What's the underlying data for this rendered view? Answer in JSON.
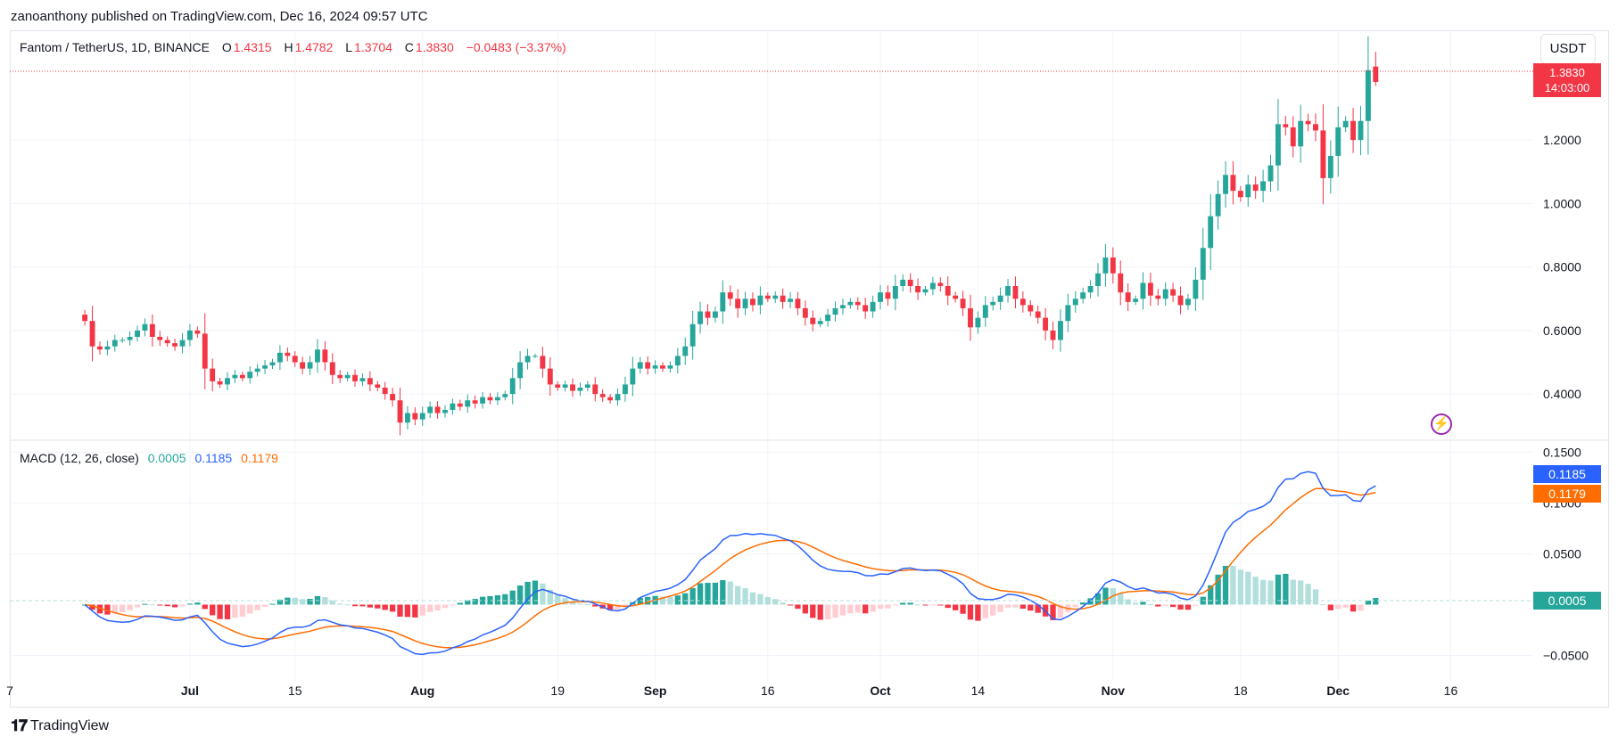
{
  "header": {
    "published": "zanoanthony published on TradingView.com, Dec 16, 2024 09:57 UTC"
  },
  "legend": {
    "symbol": "Fantom / TetherUS, 1D, BINANCE",
    "open_label": "O",
    "open": "1.4315",
    "high_label": "H",
    "high": "1.4782",
    "low_label": "L",
    "low": "1.3704",
    "close_label": "C",
    "close": "1.3830",
    "change": "−0.0483 (−3.37%)"
  },
  "currency_button": "USDT",
  "last_price_tag": {
    "price": "1.3830",
    "countdown": "14:03:00"
  },
  "macd_legend": {
    "label": "MACD (12, 26, close)",
    "hist": "0.0005",
    "macd": "0.1185",
    "signal": "0.1179"
  },
  "macd_tags": {
    "macd": "0.1185",
    "signal": "0.1179",
    "hist": "0.0005"
  },
  "colors": {
    "up": "#26a69a",
    "down": "#f23645",
    "macd_line": "#2962ff",
    "signal_line": "#ff6d00",
    "hist_up_light": "#b2dfdb",
    "hist_down_light": "#ffcdd2"
  },
  "icons": {
    "alert": "lightning-bolt-icon",
    "logo": "tradingview-logo-icon"
  },
  "footer": {
    "brand": "TradingView"
  },
  "chart_data": [
    {
      "type": "candlestick",
      "title": "Fantom / TetherUS, 1D, BINANCE",
      "y_ticks": [
        "0.4000",
        "0.6000",
        "0.8000",
        "1.0000",
        "1.2000"
      ],
      "y_tick_values": [
        0.4,
        0.6,
        0.8,
        1.0,
        1.2
      ],
      "ylim": [
        0.26,
        1.54
      ],
      "x_ticks": [
        "7",
        "Jul",
        "15",
        "Aug",
        "19",
        "Sep",
        "16",
        "Oct",
        "14",
        "Nov",
        "18",
        "Dec",
        "16"
      ],
      "x_tick_dates": [
        "2024-06-07",
        "2024-07-01",
        "2024-07-15",
        "2024-08-01",
        "2024-08-19",
        "2024-09-01",
        "2024-09-16",
        "2024-10-01",
        "2024-10-14",
        "2024-11-01",
        "2024-11-18",
        "2024-12-01",
        "2024-12-16"
      ],
      "date_range": [
        "2024-06-17",
        "2024-12-16"
      ],
      "closes": [
        0.63,
        0.55,
        0.54,
        0.55,
        0.57,
        0.57,
        0.58,
        0.6,
        0.62,
        0.58,
        0.57,
        0.56,
        0.55,
        0.57,
        0.6,
        0.59,
        0.48,
        0.44,
        0.43,
        0.45,
        0.46,
        0.45,
        0.47,
        0.48,
        0.49,
        0.5,
        0.53,
        0.52,
        0.5,
        0.48,
        0.5,
        0.54,
        0.5,
        0.46,
        0.45,
        0.46,
        0.44,
        0.45,
        0.43,
        0.42,
        0.4,
        0.38,
        0.31,
        0.34,
        0.32,
        0.34,
        0.36,
        0.34,
        0.35,
        0.37,
        0.36,
        0.38,
        0.37,
        0.39,
        0.38,
        0.39,
        0.4,
        0.45,
        0.5,
        0.52,
        0.52,
        0.48,
        0.43,
        0.42,
        0.43,
        0.41,
        0.42,
        0.43,
        0.4,
        0.39,
        0.38,
        0.4,
        0.43,
        0.48,
        0.5,
        0.48,
        0.49,
        0.48,
        0.49,
        0.52,
        0.55,
        0.62,
        0.66,
        0.64,
        0.66,
        0.72,
        0.7,
        0.67,
        0.7,
        0.68,
        0.71,
        0.7,
        0.71,
        0.69,
        0.7,
        0.67,
        0.64,
        0.62,
        0.63,
        0.65,
        0.67,
        0.68,
        0.69,
        0.68,
        0.66,
        0.69,
        0.72,
        0.7,
        0.74,
        0.76,
        0.74,
        0.72,
        0.73,
        0.75,
        0.74,
        0.71,
        0.7,
        0.67,
        0.61,
        0.64,
        0.68,
        0.69,
        0.71,
        0.74,
        0.7,
        0.68,
        0.66,
        0.64,
        0.6,
        0.57,
        0.63,
        0.68,
        0.7,
        0.72,
        0.74,
        0.78,
        0.83,
        0.78,
        0.72,
        0.69,
        0.7,
        0.75,
        0.71,
        0.7,
        0.73,
        0.71,
        0.68,
        0.7,
        0.76,
        0.86,
        0.96,
        1.03,
        1.09,
        1.04,
        1.02,
        1.06,
        1.04,
        1.07,
        1.12,
        1.25,
        1.24,
        1.18,
        1.26,
        1.25,
        1.23,
        1.08,
        1.15,
        1.24,
        1.26,
        1.2,
        1.26,
        1.42,
        1.38
      ],
      "last": {
        "open": 1.4315,
        "high": 1.4782,
        "low": 1.3704,
        "close": 1.383
      }
    },
    {
      "type": "line",
      "title": "MACD (12, 26, close)",
      "y_ticks": [
        "−0.0500",
        "0.0500",
        "0.1000",
        "0.1500"
      ],
      "y_tick_values": [
        -0.05,
        0.05,
        0.1,
        0.15
      ],
      "ylim": [
        -0.075,
        0.16
      ],
      "series": [
        {
          "name": "MACD",
          "color": "#2962ff",
          "last": 0.1185
        },
        {
          "name": "Signal",
          "color": "#ff6d00",
          "last": 0.1179
        },
        {
          "name": "Histogram",
          "last": 0.0005
        }
      ]
    }
  ]
}
